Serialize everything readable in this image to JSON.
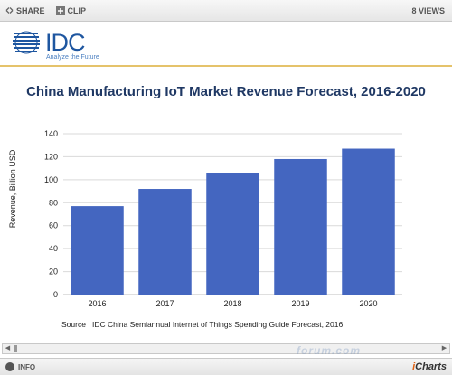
{
  "toolbar": {
    "share_label": "SHARE",
    "clip_label": "CLIP",
    "views_label": "8 VIEWS"
  },
  "logo": {
    "name": "IDC",
    "tagline": "Analyze the Future"
  },
  "chart_data": {
    "type": "bar",
    "title": "China Manufacturing IoT Market Revenue Forecast, 2016-2020",
    "categories": [
      "2016",
      "2017",
      "2018",
      "2019",
      "2020"
    ],
    "values": [
      77,
      92,
      106,
      118,
      127
    ],
    "ylabel": "Revenue, Billion USD",
    "xlabel": "",
    "ylim": [
      0,
      140
    ],
    "yticks": [
      0,
      20,
      40,
      60,
      80,
      100,
      120,
      140
    ],
    "grid": true,
    "bar_color": "#4466c0",
    "source": "Source : IDC China Semiannual Internet of Things Spending Guide Forecast, 2016"
  },
  "watermark": "forum.com",
  "footer": {
    "info_label": "INFO",
    "brand_i": "i",
    "brand_rest": "Charts"
  }
}
